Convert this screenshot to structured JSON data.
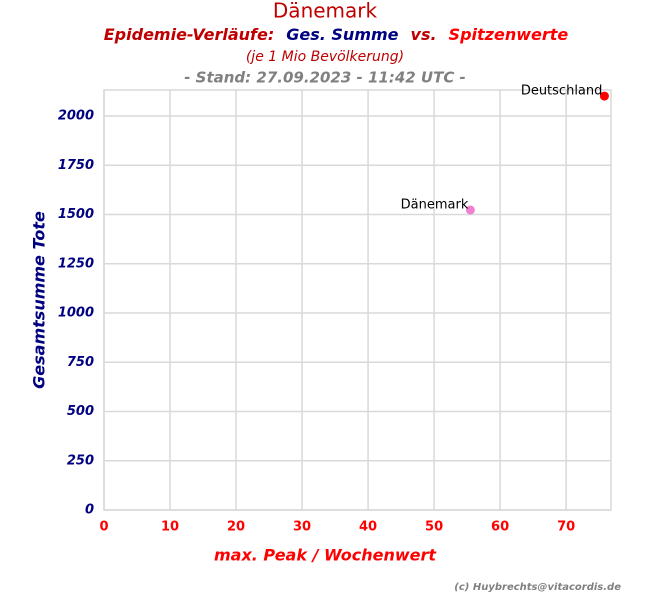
{
  "chart_data": {
    "type": "scatter",
    "title": "Dänemark",
    "title_color": "#c00000",
    "subtitle_parts": [
      {
        "text": "Epidemie-Verläufe:",
        "color": "#c00000"
      },
      {
        "text": "Ges. Summe",
        "color": "#000080"
      },
      {
        "text": "vs.",
        "color": "#c00000"
      },
      {
        "text": "Spitzenwerte",
        "color": "#ff0000"
      }
    ],
    "note": "(je 1 Mio Bevölkerung)",
    "note_color": "#c00000",
    "stand": "- Stand: 27.09.2023 - 11:42 UTC -",
    "credit": "(c) Huybrechts@vitacordis.de",
    "xlabel": "max. Peak / Wochenwert",
    "xlabel_color": "#ff0000",
    "ylabel": "Gesamtsumme Tote",
    "ylabel_color": "#000080",
    "xlim": [
      0,
      76.8
    ],
    "xticks": [
      0,
      10,
      20,
      30,
      40,
      50,
      60,
      70
    ],
    "ylim": [
      0,
      2132
    ],
    "yticks": [
      0,
      250,
      500,
      750,
      1000,
      1250,
      1500,
      1750,
      2000
    ],
    "grid": true,
    "series": [
      {
        "name": "Deutschland",
        "color": "#ff0000",
        "x": [
          75.8
        ],
        "values": [
          2101
        ]
      },
      {
        "name": "Dänemark",
        "color": "#f080d0",
        "x": [
          55.5
        ],
        "values": [
          1523
        ]
      }
    ]
  }
}
